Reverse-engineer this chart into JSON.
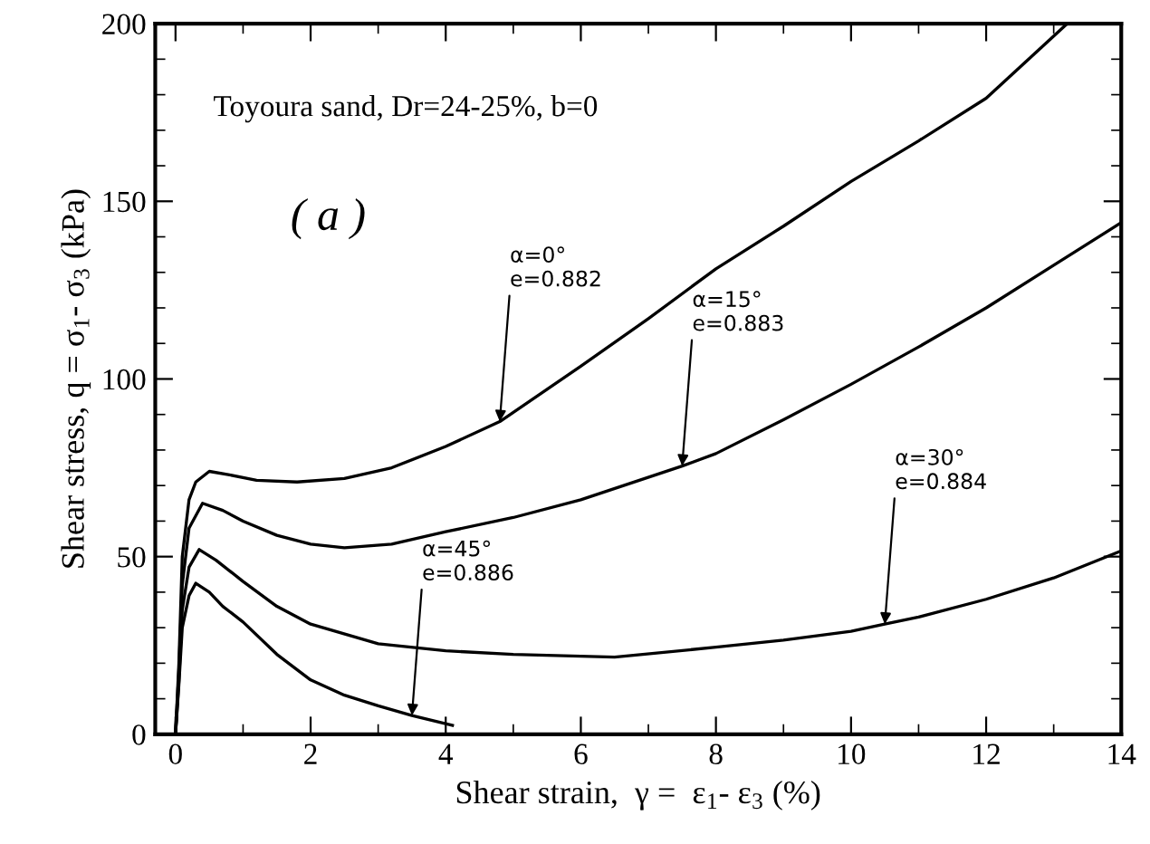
{
  "chart_data": {
    "type": "line",
    "xlabel": "Shear strain,  γ =  ε$_{1}$- ε$_{3}$ (%)",
    "ylabel": "Shear stress, q = σ$_{1}$- σ$_{3}$ (kPa)",
    "xlim": [
      -0.3,
      14
    ],
    "ylim": [
      0,
      200
    ],
    "xticks": [
      0,
      {
        "value": 1,
        "label": null
      },
      2,
      {
        "value": 3,
        "label": null
      },
      4,
      {
        "value": 5,
        "label": null
      },
      6,
      {
        "value": 7,
        "label": null
      },
      8,
      {
        "value": 9,
        "label": null
      },
      10,
      {
        "value": 11,
        "label": null
      },
      12,
      {
        "value": 13,
        "label": null
      },
      14
    ],
    "yticks": [
      0,
      {
        "value": 10,
        "label": null
      },
      {
        "value": 20,
        "label": null
      },
      {
        "value": 30,
        "label": null
      },
      {
        "value": 40,
        "label": null
      },
      50,
      {
        "value": 60,
        "label": null
      },
      {
        "value": 70,
        "label": null
      },
      {
        "value": 80,
        "label": null
      },
      {
        "value": 90,
        "label": null
      },
      100,
      {
        "value": 110,
        "label": null
      },
      {
        "value": 120,
        "label": null
      },
      {
        "value": 130,
        "label": null
      },
      {
        "value": 140,
        "label": null
      },
      150,
      {
        "value": 160,
        "label": null
      },
      {
        "value": 170,
        "label": null
      },
      {
        "value": 180,
        "label": null
      },
      {
        "value": 190,
        "label": null
      },
      200
    ],
    "grid": false,
    "marker": "none",
    "line_style": "solid",
    "series": [
      {
        "color": "#000000",
        "x": [
          0.0,
          0.05,
          0.1,
          0.2,
          0.3,
          0.5,
          0.8,
          1.2,
          1.8,
          2.5,
          3.2,
          4.0,
          4.8,
          6.0,
          7.0,
          8.0,
          9.0,
          10.0,
          11.0,
          12.0,
          13.2
        ],
        "values": [
          0,
          20,
          50,
          66,
          71,
          74,
          73,
          71.5,
          71,
          72,
          75,
          81,
          88,
          103.6,
          117,
          131,
          143,
          155.6,
          167,
          179,
          200
        ]
      },
      {
        "color": "#000000",
        "x": [
          0.0,
          0.05,
          0.1,
          0.2,
          0.4,
          0.7,
          1.0,
          1.5,
          2.0,
          2.5,
          3.2,
          4.0,
          5.0,
          6.0,
          7.5,
          8.0,
          9.0,
          10.0,
          11.0,
          12.0,
          13.0,
          14.0
        ],
        "values": [
          0,
          18,
          42,
          58,
          65,
          63,
          60,
          56,
          53.5,
          52.5,
          53.5,
          57,
          61,
          66,
          75.5,
          79,
          88.5,
          98.5,
          109,
          120,
          132,
          144
        ]
      },
      {
        "color": "#000000",
        "x": [
          0.0,
          0.05,
          0.1,
          0.2,
          0.35,
          0.6,
          1.0,
          1.5,
          2.0,
          3.0,
          4.0,
          5.0,
          6.5,
          8.0,
          9.0,
          10.0,
          10.5,
          11.0,
          12.0,
          13.0,
          14.0
        ],
        "values": [
          0,
          15,
          35,
          47,
          52,
          49,
          43,
          36,
          31,
          25.5,
          23.5,
          22.5,
          21.7,
          24.5,
          26.5,
          29,
          31,
          33,
          38,
          44,
          51.6
        ]
      },
      {
        "color": "#000000",
        "x": [
          0.0,
          0.05,
          0.1,
          0.2,
          0.3,
          0.5,
          0.7,
          1.0,
          1.5,
          2.0,
          2.5,
          3.0,
          3.5,
          4.1
        ],
        "values": [
          0,
          14,
          30,
          39,
          42.5,
          40,
          36,
          31.6,
          22.5,
          15.3,
          11,
          8,
          5.3,
          2.5
        ]
      }
    ],
    "annotations": [
      "Toyoura sand, Dr=24-25%, b=0",
      "( a )",
      {
        "text": "α=0°\ne=0.882",
        "x": 4.8,
        "y": 88
      },
      {
        "text": "α=15°\ne=0.883",
        "x": 7.5,
        "y": 75.5
      },
      {
        "text": "α=30°\ne=0.884",
        "x": 10.5,
        "y": 31
      },
      {
        "text": "α=45°\ne=0.886",
        "x": 3.5,
        "y": 5.3
      }
    ]
  }
}
